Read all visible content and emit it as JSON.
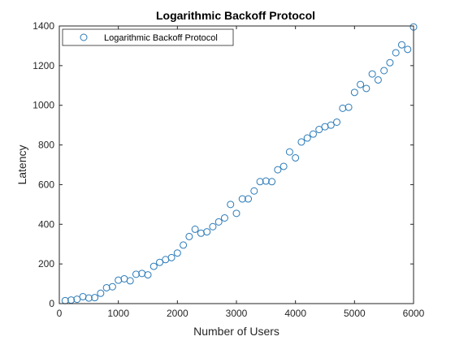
{
  "chart_data": {
    "type": "scatter",
    "title": "Logarithmic Backoff Protocol",
    "xlabel": "Number of Users",
    "ylabel": "Latency",
    "xlim": [
      0,
      6000
    ],
    "ylim": [
      0,
      1400
    ],
    "xticks": [
      0,
      1000,
      2000,
      3000,
      4000,
      5000,
      6000
    ],
    "yticks": [
      0,
      200,
      400,
      600,
      800,
      1000,
      1200,
      1400
    ],
    "grid": false,
    "legend_position": "top-left",
    "marker": "circle",
    "color": "#2a7ab8",
    "series": [
      {
        "name": "Logarithmic Backoff Protocol",
        "x": [
          100,
          200,
          300,
          400,
          500,
          600,
          700,
          800,
          900,
          1000,
          1100,
          1200,
          1300,
          1400,
          1500,
          1600,
          1700,
          1800,
          1900,
          2000,
          2100,
          2200,
          2300,
          2400,
          2500,
          2600,
          2700,
          2800,
          2900,
          3000,
          3100,
          3200,
          3300,
          3400,
          3500,
          3600,
          3700,
          3800,
          3900,
          4000,
          4100,
          4200,
          4300,
          4400,
          4500,
          4600,
          4700,
          4800,
          4900,
          5000,
          5100,
          5200,
          5300,
          5400,
          5500,
          5600,
          5700,
          5800,
          5900,
          6000
        ],
        "y": [
          15,
          18,
          22,
          35,
          28,
          30,
          52,
          80,
          85,
          118,
          125,
          115,
          148,
          152,
          145,
          188,
          208,
          222,
          232,
          255,
          295,
          338,
          375,
          355,
          362,
          388,
          412,
          432,
          500,
          455,
          528,
          528,
          568,
          615,
          618,
          615,
          675,
          692,
          765,
          735,
          815,
          835,
          855,
          878,
          892,
          900,
          915,
          985,
          990,
          1065,
          1105,
          1085,
          1158,
          1128,
          1175,
          1215,
          1265,
          1305,
          1282,
          1395
        ]
      }
    ]
  }
}
